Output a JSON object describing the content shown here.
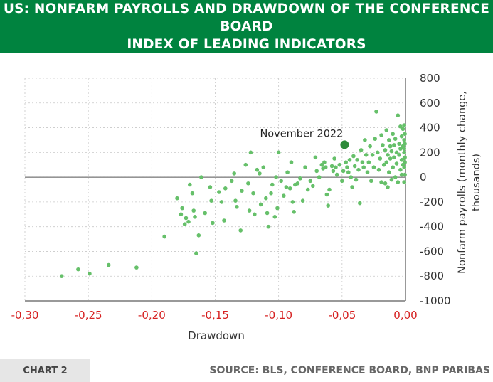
{
  "header": {
    "title_line1": "US: NONFARM PAYROLLS AND DRAWDOWN OF THE CONFERENCE BOARD",
    "title_line2": "INDEX OF LEADING INDICATORS"
  },
  "footer": {
    "chart_label": "CHART 2",
    "source": "SOURCE: BLS, CONFERENCE BOARD, BNP PARIBAS"
  },
  "colors": {
    "brand_green": "#00833f",
    "point": "#66c06a",
    "highlight": "#2e8b3a",
    "x_tick_text": "#d62020"
  },
  "chart_data": {
    "type": "scatter",
    "xlabel": "Drawdown",
    "ylabel": "Nonfarm payrolls (monthly change, thousands)",
    "xlim": [
      -0.3,
      0.0
    ],
    "ylim": [
      -1000,
      800
    ],
    "x_ticks": [
      "-0,30",
      "-0,25",
      "-0,20",
      "-0,15",
      "-0,10",
      "-0,05",
      "0,00"
    ],
    "y_ticks": [
      "800",
      "600",
      "400",
      "200",
      "0",
      "-200",
      "-400",
      "-600",
      "-800",
      "-1000"
    ],
    "highlight": {
      "label": "November 2022",
      "x": -0.048,
      "y": 263
    },
    "points": [
      [
        -0.271,
        -800
      ],
      [
        -0.258,
        -745
      ],
      [
        -0.249,
        -780
      ],
      [
        -0.234,
        -710
      ],
      [
        -0.212,
        -730
      ],
      [
        -0.19,
        -480
      ],
      [
        -0.18,
        -170
      ],
      [
        -0.177,
        -300
      ],
      [
        -0.176,
        -250
      ],
      [
        -0.174,
        -380
      ],
      [
        -0.173,
        -330
      ],
      [
        -0.171,
        -360
      ],
      [
        -0.17,
        -60
      ],
      [
        -0.168,
        -130
      ],
      [
        -0.167,
        -270
      ],
      [
        -0.166,
        -320
      ],
      [
        -0.165,
        -615
      ],
      [
        -0.163,
        -470
      ],
      [
        -0.161,
        0
      ],
      [
        -0.158,
        -290
      ],
      [
        -0.154,
        -80
      ],
      [
        -0.153,
        -190
      ],
      [
        -0.152,
        -370
      ],
      [
        -0.147,
        -120
      ],
      [
        -0.145,
        -200
      ],
      [
        -0.143,
        -350
      ],
      [
        -0.142,
        -90
      ],
      [
        -0.137,
        -30
      ],
      [
        -0.135,
        30
      ],
      [
        -0.134,
        -190
      ],
      [
        -0.133,
        -240
      ],
      [
        -0.13,
        -430
      ],
      [
        -0.129,
        -110
      ],
      [
        -0.126,
        100
      ],
      [
        -0.124,
        -50
      ],
      [
        -0.123,
        -270
      ],
      [
        -0.122,
        200
      ],
      [
        -0.12,
        -130
      ],
      [
        -0.119,
        -300
      ],
      [
        -0.117,
        60
      ],
      [
        -0.115,
        30
      ],
      [
        -0.114,
        -220
      ],
      [
        -0.112,
        80
      ],
      [
        -0.11,
        -170
      ],
      [
        -0.109,
        -290
      ],
      [
        -0.108,
        -400
      ],
      [
        -0.106,
        -130
      ],
      [
        -0.105,
        -60
      ],
      [
        -0.103,
        -320
      ],
      [
        -0.102,
        0
      ],
      [
        -0.101,
        -250
      ],
      [
        -0.1,
        200
      ],
      [
        -0.098,
        -30
      ],
      [
        -0.096,
        -150
      ],
      [
        -0.094,
        -80
      ],
      [
        -0.093,
        40
      ],
      [
        -0.091,
        -90
      ],
      [
        -0.09,
        120
      ],
      [
        -0.089,
        -200
      ],
      [
        -0.088,
        -280
      ],
      [
        -0.087,
        -60
      ],
      [
        -0.085,
        -50
      ],
      [
        -0.083,
        -10
      ],
      [
        -0.081,
        -190
      ],
      [
        -0.079,
        80
      ],
      [
        -0.077,
        -100
      ],
      [
        -0.075,
        -30
      ],
      [
        -0.073,
        -70
      ],
      [
        -0.071,
        160
      ],
      [
        -0.07,
        50
      ],
      [
        -0.068,
        0
      ],
      [
        -0.066,
        100
      ],
      [
        -0.065,
        70
      ],
      [
        -0.064,
        120
      ],
      [
        -0.063,
        80
      ],
      [
        -0.062,
        -140
      ],
      [
        -0.061,
        -230
      ],
      [
        -0.06,
        -100
      ],
      [
        -0.058,
        90
      ],
      [
        -0.057,
        50
      ],
      [
        -0.056,
        150
      ],
      [
        -0.055,
        80
      ],
      [
        -0.054,
        20
      ],
      [
        -0.052,
        100
      ],
      [
        -0.05,
        -30
      ],
      [
        -0.049,
        50
      ],
      [
        -0.047,
        120
      ],
      [
        -0.046,
        80
      ],
      [
        -0.045,
        40
      ],
      [
        -0.044,
        140
      ],
      [
        -0.043,
        0
      ],
      [
        -0.042,
        -80
      ],
      [
        -0.041,
        170
      ],
      [
        -0.04,
        90
      ],
      [
        -0.039,
        -20
      ],
      [
        -0.038,
        140
      ],
      [
        -0.037,
        60
      ],
      [
        -0.036,
        -210
      ],
      [
        -0.035,
        220
      ],
      [
        -0.034,
        120
      ],
      [
        -0.033,
        80
      ],
      [
        -0.032,
        300
      ],
      [
        -0.031,
        180
      ],
      [
        -0.03,
        40
      ],
      [
        -0.029,
        120
      ],
      [
        -0.028,
        250
      ],
      [
        -0.027,
        -30
      ],
      [
        -0.026,
        180
      ],
      [
        -0.025,
        80
      ],
      [
        -0.024,
        310
      ],
      [
        -0.023,
        530
      ],
      [
        -0.022,
        200
      ],
      [
        -0.021,
        60
      ],
      [
        -0.02,
        150
      ],
      [
        -0.019,
        340
      ],
      [
        -0.019,
        -40
      ],
      [
        -0.018,
        260
      ],
      [
        -0.017,
        100
      ],
      [
        -0.016,
        -50
      ],
      [
        -0.016,
        220
      ],
      [
        -0.015,
        380
      ],
      [
        -0.015,
        120
      ],
      [
        -0.014,
        180
      ],
      [
        -0.014,
        -80
      ],
      [
        -0.013,
        300
      ],
      [
        -0.013,
        40
      ],
      [
        -0.012,
        250
      ],
      [
        -0.012,
        150
      ],
      [
        -0.011,
        -20
      ],
      [
        -0.011,
        210
      ],
      [
        -0.01,
        350
      ],
      [
        -0.01,
        80
      ],
      [
        -0.009,
        260
      ],
      [
        -0.009,
        160
      ],
      [
        -0.008,
        0
      ],
      [
        -0.008,
        310
      ],
      [
        -0.007,
        200
      ],
      [
        -0.007,
        110
      ],
      [
        -0.006,
        500
      ],
      [
        -0.006,
        -40
      ],
      [
        -0.005,
        270
      ],
      [
        -0.005,
        180
      ],
      [
        -0.004,
        410
      ],
      [
        -0.004,
        60
      ],
      [
        -0.004,
        230
      ],
      [
        -0.003,
        330
      ],
      [
        -0.003,
        140
      ],
      [
        -0.003,
        20
      ],
      [
        -0.002,
        390
      ],
      [
        -0.002,
        250
      ],
      [
        -0.002,
        100
      ],
      [
        -0.001,
        300
      ],
      [
        -0.001,
        200
      ],
      [
        -0.001,
        -40
      ],
      [
        -0.001,
        150
      ],
      [
        -0.001,
        420
      ],
      [
        -0.001,
        230
      ],
      [
        -0.001,
        80
      ],
      [
        -0.0005,
        350
      ],
      [
        -0.0005,
        160
      ],
      [
        -0.0005,
        270
      ],
      [
        -0.0005,
        20
      ],
      [
        -0.0005,
        120
      ]
    ]
  }
}
